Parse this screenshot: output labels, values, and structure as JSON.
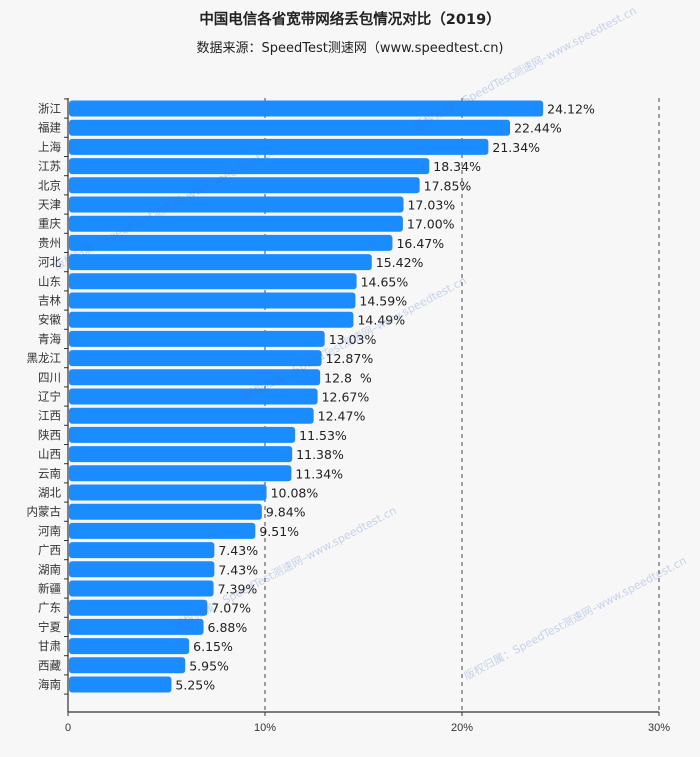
{
  "chart_data": {
    "type": "bar",
    "orientation": "horizontal",
    "title": "中国电信各省宽带网络丢包情况对比（2019）",
    "subtitle": "数据来源：SpeedTest测速网（www.speedtest.cn)",
    "xlabel": "",
    "ylabel": "",
    "xlim": [
      0,
      30
    ],
    "x_ticks": [
      "0",
      "10%",
      "20%",
      "30%"
    ],
    "x_tick_values": [
      0,
      10,
      20,
      30
    ],
    "grid": "vertical dashed",
    "bar_color": "#1a8cff",
    "categories": [
      "浙江",
      "福建",
      "上海",
      "江苏",
      "北京",
      "天津",
      "重庆",
      "贵州",
      "河北",
      "山东",
      "吉林",
      "安徽",
      "青海",
      "黑龙江",
      "四川",
      "辽宁",
      "江西",
      "陕西",
      "山西",
      "云南",
      "湖北",
      "内蒙古",
      "河南",
      "广西",
      "湖南",
      "新疆",
      "广东",
      "宁夏",
      "甘肃",
      "西藏",
      "海南"
    ],
    "values": [
      24.12,
      22.44,
      21.34,
      18.34,
      17.85,
      17.03,
      17.0,
      16.47,
      15.42,
      14.65,
      14.59,
      14.49,
      13.03,
      12.87,
      12.8,
      12.67,
      12.47,
      11.53,
      11.38,
      11.34,
      10.08,
      9.84,
      9.51,
      7.43,
      7.43,
      7.39,
      7.07,
      6.88,
      6.15,
      5.95,
      5.25
    ],
    "data_labels": [
      "24.12%",
      "22.44%",
      "21.34%",
      "18.34%",
      "17.85%",
      "17.03%",
      "17.00%",
      "16.47%",
      "15.42%",
      "14.65%",
      "14.59%",
      "14.49%",
      "13.03%",
      "12.87%",
      "12.8  %",
      "12.67%",
      "12.47%",
      "11.53%",
      "11.38%",
      "11.34%",
      "10.08%",
      "9.84%",
      "9.51%",
      "7.43%",
      "7.43%",
      "7.39%",
      "7.07%",
      "6.88%",
      "6.15%",
      "5.95%",
      "5.25%"
    ]
  },
  "watermark": [
    "版权归属：SpeedTest测速网–www.speedtest.cn",
    "尊重版权，盗图/数据必究"
  ]
}
